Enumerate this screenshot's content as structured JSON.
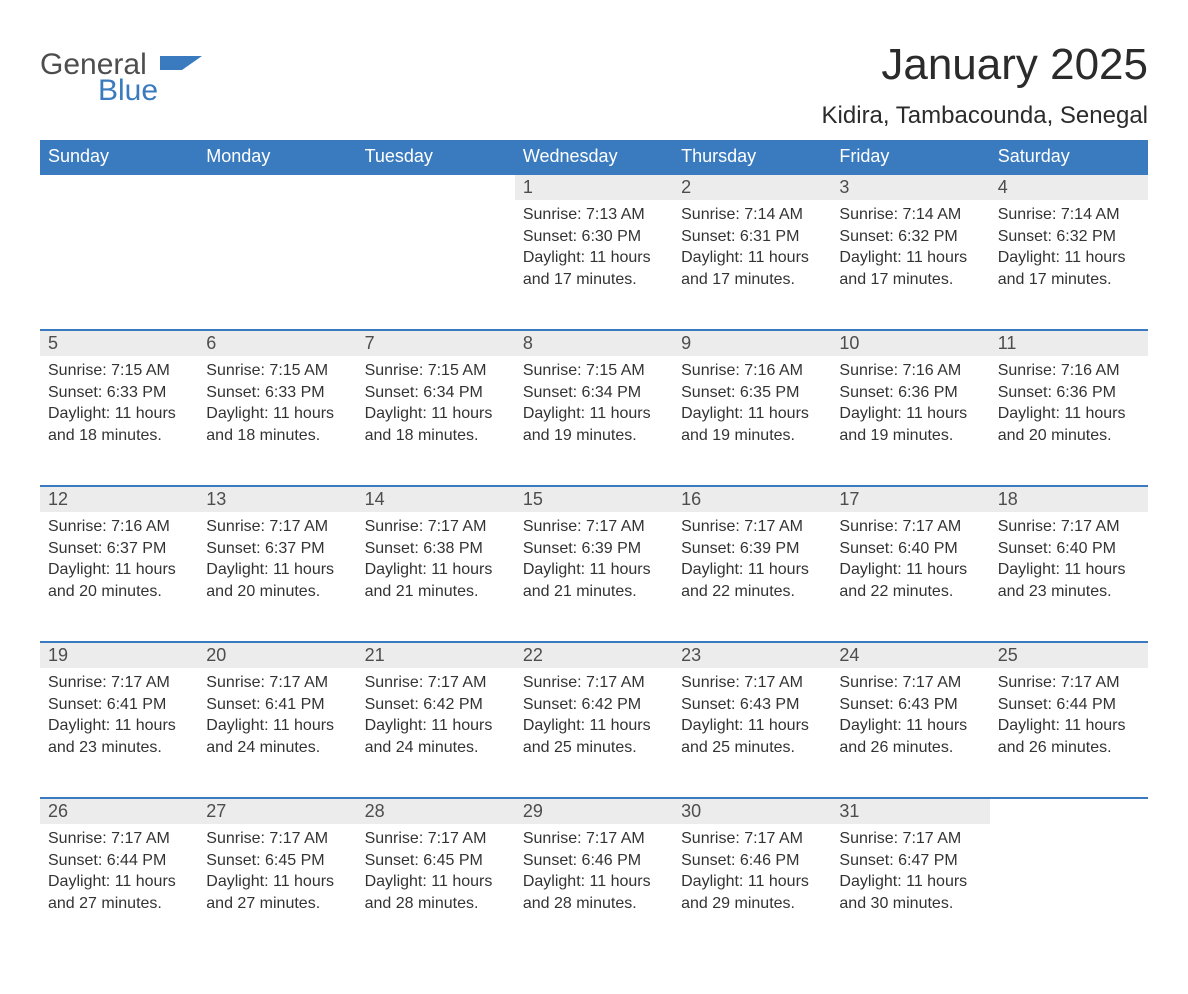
{
  "logo": {
    "general": "General",
    "blue": "Blue"
  },
  "title": "January 2025",
  "location": "Kidira, Tambacounda, Senegal",
  "colors": {
    "header_bg": "#3a7bbf",
    "header_text": "#ffffff",
    "daynum_bg": "#ececec",
    "daynum_border": "#3a7bbf",
    "body_text": "#333333",
    "logo_gray": "#4d4d4d",
    "logo_blue": "#3a7bbf",
    "page_bg": "#ffffff"
  },
  "weekdays": [
    "Sunday",
    "Monday",
    "Tuesday",
    "Wednesday",
    "Thursday",
    "Friday",
    "Saturday"
  ],
  "weeks": [
    [
      null,
      null,
      null,
      {
        "n": "1",
        "sunrise": "7:13 AM",
        "sunset": "6:30 PM",
        "dh": "11",
        "dm": "17"
      },
      {
        "n": "2",
        "sunrise": "7:14 AM",
        "sunset": "6:31 PM",
        "dh": "11",
        "dm": "17"
      },
      {
        "n": "3",
        "sunrise": "7:14 AM",
        "sunset": "6:32 PM",
        "dh": "11",
        "dm": "17"
      },
      {
        "n": "4",
        "sunrise": "7:14 AM",
        "sunset": "6:32 PM",
        "dh": "11",
        "dm": "17"
      }
    ],
    [
      {
        "n": "5",
        "sunrise": "7:15 AM",
        "sunset": "6:33 PM",
        "dh": "11",
        "dm": "18"
      },
      {
        "n": "6",
        "sunrise": "7:15 AM",
        "sunset": "6:33 PM",
        "dh": "11",
        "dm": "18"
      },
      {
        "n": "7",
        "sunrise": "7:15 AM",
        "sunset": "6:34 PM",
        "dh": "11",
        "dm": "18"
      },
      {
        "n": "8",
        "sunrise": "7:15 AM",
        "sunset": "6:34 PM",
        "dh": "11",
        "dm": "19"
      },
      {
        "n": "9",
        "sunrise": "7:16 AM",
        "sunset": "6:35 PM",
        "dh": "11",
        "dm": "19"
      },
      {
        "n": "10",
        "sunrise": "7:16 AM",
        "sunset": "6:36 PM",
        "dh": "11",
        "dm": "19"
      },
      {
        "n": "11",
        "sunrise": "7:16 AM",
        "sunset": "6:36 PM",
        "dh": "11",
        "dm": "20"
      }
    ],
    [
      {
        "n": "12",
        "sunrise": "7:16 AM",
        "sunset": "6:37 PM",
        "dh": "11",
        "dm": "20"
      },
      {
        "n": "13",
        "sunrise": "7:17 AM",
        "sunset": "6:37 PM",
        "dh": "11",
        "dm": "20"
      },
      {
        "n": "14",
        "sunrise": "7:17 AM",
        "sunset": "6:38 PM",
        "dh": "11",
        "dm": "21"
      },
      {
        "n": "15",
        "sunrise": "7:17 AM",
        "sunset": "6:39 PM",
        "dh": "11",
        "dm": "21"
      },
      {
        "n": "16",
        "sunrise": "7:17 AM",
        "sunset": "6:39 PM",
        "dh": "11",
        "dm": "22"
      },
      {
        "n": "17",
        "sunrise": "7:17 AM",
        "sunset": "6:40 PM",
        "dh": "11",
        "dm": "22"
      },
      {
        "n": "18",
        "sunrise": "7:17 AM",
        "sunset": "6:40 PM",
        "dh": "11",
        "dm": "23"
      }
    ],
    [
      {
        "n": "19",
        "sunrise": "7:17 AM",
        "sunset": "6:41 PM",
        "dh": "11",
        "dm": "23"
      },
      {
        "n": "20",
        "sunrise": "7:17 AM",
        "sunset": "6:41 PM",
        "dh": "11",
        "dm": "24"
      },
      {
        "n": "21",
        "sunrise": "7:17 AM",
        "sunset": "6:42 PM",
        "dh": "11",
        "dm": "24"
      },
      {
        "n": "22",
        "sunrise": "7:17 AM",
        "sunset": "6:42 PM",
        "dh": "11",
        "dm": "25"
      },
      {
        "n": "23",
        "sunrise": "7:17 AM",
        "sunset": "6:43 PM",
        "dh": "11",
        "dm": "25"
      },
      {
        "n": "24",
        "sunrise": "7:17 AM",
        "sunset": "6:43 PM",
        "dh": "11",
        "dm": "26"
      },
      {
        "n": "25",
        "sunrise": "7:17 AM",
        "sunset": "6:44 PM",
        "dh": "11",
        "dm": "26"
      }
    ],
    [
      {
        "n": "26",
        "sunrise": "7:17 AM",
        "sunset": "6:44 PM",
        "dh": "11",
        "dm": "27"
      },
      {
        "n": "27",
        "sunrise": "7:17 AM",
        "sunset": "6:45 PM",
        "dh": "11",
        "dm": "27"
      },
      {
        "n": "28",
        "sunrise": "7:17 AM",
        "sunset": "6:45 PM",
        "dh": "11",
        "dm": "28"
      },
      {
        "n": "29",
        "sunrise": "7:17 AM",
        "sunset": "6:46 PM",
        "dh": "11",
        "dm": "28"
      },
      {
        "n": "30",
        "sunrise": "7:17 AM",
        "sunset": "6:46 PM",
        "dh": "11",
        "dm": "29"
      },
      {
        "n": "31",
        "sunrise": "7:17 AM",
        "sunset": "6:47 PM",
        "dh": "11",
        "dm": "30"
      },
      null
    ]
  ],
  "labels": {
    "sunrise": "Sunrise: ",
    "sunset": "Sunset: ",
    "daylight_pre": "Daylight: ",
    "hours_word": " hours",
    "and_word": "and ",
    "minutes_word": " minutes."
  }
}
